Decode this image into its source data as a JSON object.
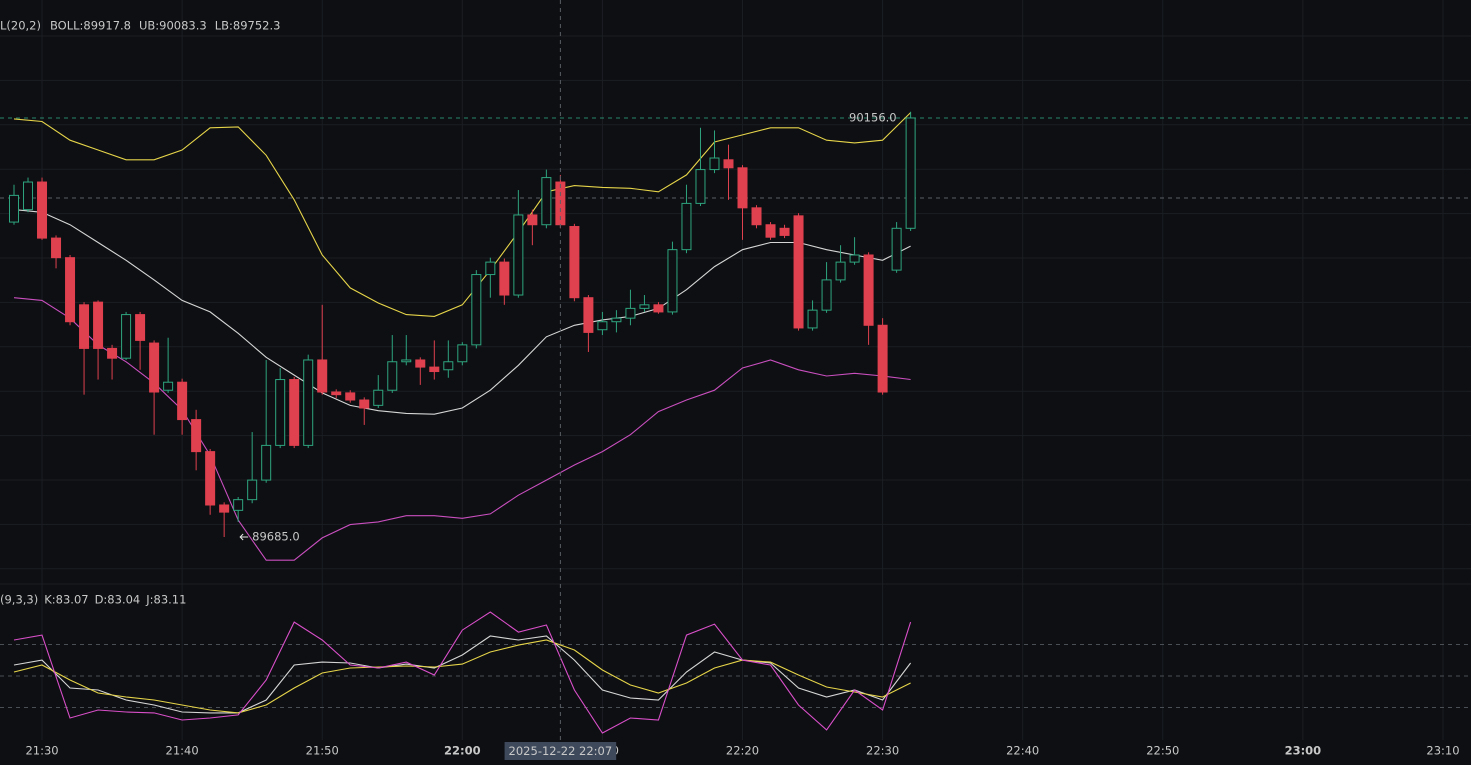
{
  "chart_data": [
    {
      "type": "candlestick",
      "indicator_params": "L(20,2)",
      "up_color": "#2fa57f",
      "down_color": "#e0414f",
      "xlim": [
        "21:27",
        "23:12"
      ],
      "ylim": [
        89636.7,
        90288.6
      ],
      "x": [
        "21:28",
        "21:29",
        "21:30",
        "21:31",
        "21:32",
        "21:33",
        "21:34",
        "21:35",
        "21:36",
        "21:37",
        "21:38",
        "21:39",
        "21:40",
        "21:41",
        "21:42",
        "21:43",
        "21:44",
        "21:45",
        "21:46",
        "21:47",
        "21:48",
        "21:49",
        "21:50",
        "21:51",
        "21:52",
        "21:53",
        "21:54",
        "21:55",
        "21:56",
        "21:57",
        "21:58",
        "21:59",
        "22:00",
        "22:01",
        "22:02",
        "22:03",
        "22:04",
        "22:05",
        "22:06",
        "22:07",
        "22:08",
        "22:09",
        "22:10",
        "22:11",
        "22:12",
        "22:13",
        "22:14",
        "22:15",
        "22:16",
        "22:17",
        "22:18",
        "22:19",
        "22:20",
        "22:21",
        "22:22",
        "22:23",
        "22:24",
        "22:25",
        "22:26",
        "22:27",
        "22:28",
        "22:29",
        "22:30",
        "22:31",
        "22:32"
      ],
      "open": [
        90039,
        90053,
        90084,
        90021,
        89999,
        89946,
        89949,
        89897,
        89886,
        89935,
        89903,
        89850,
        89859,
        89817,
        89781,
        89721,
        89715,
        89727,
        89749,
        89788,
        89862,
        89788,
        89884,
        89848,
        89847,
        89839,
        89833,
        89850,
        89882,
        89884,
        89876,
        89873,
        89882,
        89901,
        89980,
        89994,
        89957,
        90047,
        90036,
        90084,
        90034,
        89954,
        89918,
        89927,
        89931,
        89942,
        89946,
        89938,
        90008,
        90060,
        90098,
        90109,
        90100,
        90055,
        90036,
        90032,
        90046,
        89920,
        89940,
        89974,
        89994,
        90002,
        89923,
        89985,
        90032
      ],
      "high": [
        90081,
        90089,
        90089,
        90024,
        90002,
        89949,
        89951,
        89901,
        89938,
        89938,
        89906,
        89909,
        89863,
        89828,
        89784,
        89724,
        89730,
        89803,
        89884,
        89875,
        89865,
        89890,
        89946,
        89851,
        89850,
        89842,
        89867,
        89912,
        89912,
        89887,
        89906,
        89906,
        89904,
        89985,
        89999,
        89998,
        90075,
        90053,
        90098,
        90092,
        90037,
        89957,
        89938,
        89940,
        89963,
        89957,
        89949,
        90017,
        90081,
        90145,
        90142,
        90126,
        90103,
        90058,
        90039,
        90036,
        90049,
        89951,
        89994,
        90013,
        90022,
        90005,
        89931,
        90039,
        90163
      ],
      "low": [
        90036,
        90050,
        90019,
        89987,
        89923,
        89845,
        89862,
        89862,
        89884,
        89873,
        89800,
        89847,
        89800,
        89760,
        89710,
        89685,
        89702,
        89723,
        89746,
        89785,
        89785,
        89785,
        89845,
        89841,
        89836,
        89811,
        89830,
        89847,
        89878,
        89856,
        89862,
        89864,
        89878,
        89897,
        89954,
        89946,
        89954,
        90013,
        90032,
        90032,
        89950,
        89893,
        89912,
        89915,
        89923,
        89938,
        89936,
        89935,
        90004,
        90057,
        90094,
        90064,
        90019,
        90032,
        90019,
        90021,
        89917,
        89917,
        89937,
        89971,
        89991,
        89901,
        89845,
        89982,
        90029
      ],
      "close": [
        90069,
        90084,
        90021,
        89999,
        89927,
        89897,
        89897,
        89886,
        89935,
        89906,
        89848,
        89859,
        89817,
        89781,
        89721,
        89713,
        89727,
        89749,
        89788,
        89862,
        89788,
        89884,
        89848,
        89845,
        89839,
        89830,
        89850,
        89882,
        89884,
        89876,
        89871,
        89882,
        89901,
        89980,
        89994,
        89957,
        90047,
        90036,
        90089,
        90036,
        89954,
        89915,
        89927,
        89931,
        89942,
        89946,
        89938,
        90008,
        90060,
        90098,
        90111,
        90100,
        90055,
        90036,
        90022,
        90024,
        89920,
        89940,
        89974,
        89994,
        90002,
        89923,
        89848,
        90032,
        90156
      ],
      "overlay": {
        "x": [
          "21:28",
          "21:30",
          "21:32",
          "21:34",
          "21:36",
          "21:38",
          "21:40",
          "21:42",
          "21:44",
          "21:46",
          "21:48",
          "21:50",
          "21:52",
          "21:54",
          "21:56",
          "21:58",
          "22:00",
          "22:02",
          "22:04",
          "22:06",
          "22:08",
          "22:10",
          "22:12",
          "22:14",
          "22:16",
          "22:18",
          "22:20",
          "22:22",
          "22:24",
          "22:26",
          "22:28",
          "22:30",
          "22:32"
        ],
        "series": [
          {
            "label": "BOLL:89917.8",
            "color": "#d6d6d6",
            "values": [
              90053,
              90050,
              90036,
              90016,
              89996,
              89974,
              89951,
              89938,
              89914,
              89887,
              89867,
              89847,
              89833,
              89827,
              89824,
              89823,
              89830,
              89850,
              89878,
              89910,
              89923,
              89929,
              89933,
              89942,
              89963,
              89989,
              90008,
              90016,
              90016,
              90008,
              90002,
              89996,
              90012
            ]
          },
          {
            "label": "UB:90083.3",
            "color": "#e6d44a",
            "values": [
              90155,
              90152,
              90131,
              90120,
              90109,
              90109,
              90120,
              90145,
              90146,
              90114,
              90064,
              90002,
              89965,
              89948,
              89935,
              89933,
              89946,
              89985,
              90028,
              90073,
              90080,
              90078,
              90077,
              90073,
              90092,
              90129,
              90137,
              90145,
              90145,
              90131,
              90128,
              90131,
              90162
            ]
          },
          {
            "label": "LB:89752.3",
            "color": "#c94fbf",
            "values": [
              89954,
              89951,
              89931,
              89901,
              89882,
              89858,
              89828,
              89777,
              89704,
              89659,
              89659,
              89684,
              89699,
              89702,
              89709,
              89709,
              89706,
              89711,
              89732,
              89749,
              89766,
              89781,
              89800,
              89826,
              89839,
              89850,
              89875,
              89884,
              89873,
              89866,
              89869,
              89866,
              89862
            ]
          }
        ]
      },
      "high_label": {
        "x": "22:32",
        "value": 90156,
        "label": "90156.0"
      },
      "low_label": {
        "x": "21:43",
        "value": 89685,
        "label": "89685.0"
      },
      "last_price_line": 90156,
      "crosshair": {
        "x": "22:07",
        "y": 90066,
        "label": "2025-12-22 22:07"
      }
    },
    {
      "type": "line",
      "indicator_params": "(9,3,3)",
      "xlim": [
        "21:27",
        "23:12"
      ],
      "ylim": [
        -11,
        132
      ],
      "levels": [
        20,
        50,
        80
      ],
      "x": [
        "21:28",
        "21:30",
        "21:32",
        "21:34",
        "21:36",
        "21:38",
        "21:40",
        "21:42",
        "21:44",
        "21:46",
        "21:48",
        "21:50",
        "21:52",
        "21:54",
        "21:56",
        "21:58",
        "22:00",
        "22:02",
        "22:04",
        "22:06",
        "22:08",
        "22:10",
        "22:12",
        "22:14",
        "22:16",
        "22:18",
        "22:20",
        "22:22",
        "22:24",
        "22:26",
        "22:28",
        "22:30",
        "22:32"
      ],
      "series": [
        {
          "label": "K:83.07",
          "color": "#d6d6d6",
          "values": [
            60.5,
            65.2,
            38.6,
            36.7,
            27.1,
            22.4,
            15.7,
            14.8,
            14.8,
            27.1,
            60.5,
            63.3,
            62.4,
            57.6,
            61.4,
            57.6,
            70,
            88.1,
            84.3,
            88.1,
            65.2,
            36.7,
            29,
            27.1,
            53.8,
            72.9,
            65.2,
            62.4,
            38.6,
            30,
            36.7,
            27.1,
            62.4
          ]
        },
        {
          "label": "D:83.04",
          "color": "#e6d44a",
          "values": [
            53.8,
            60.5,
            46.2,
            33.8,
            30,
            27.1,
            22.4,
            17.6,
            14.8,
            22.4,
            38.6,
            52.9,
            57.6,
            58.6,
            59.5,
            58.6,
            61.4,
            72.9,
            79.5,
            84.3,
            74.8,
            55.7,
            41.4,
            33.8,
            43.3,
            57.6,
            65.2,
            63.3,
            51,
            39.5,
            34.8,
            30,
            43.3
          ]
        },
        {
          "label": "J:83.11",
          "color": "#d94fc9",
          "values": [
            84.3,
            89,
            10,
            17.6,
            15.7,
            14.8,
            8.1,
            10,
            12.9,
            46.2,
            101.4,
            84.3,
            60.5,
            57.6,
            63.3,
            51,
            93.8,
            111,
            91.9,
            98.6,
            36.7,
            -4.3,
            10,
            8.1,
            89,
            99.5,
            65.2,
            60.5,
            22.4,
            -1.4,
            36.7,
            17.6,
            101.4
          ]
        }
      ],
      "xticks": [
        "21:30",
        "21:40",
        "21:50",
        "22:00",
        "22:10",
        "22:20",
        "22:30",
        "22:40",
        "22:50",
        "23:00",
        "23:10"
      ],
      "xtick_bold": [
        false,
        false,
        false,
        true,
        false,
        false,
        false,
        false,
        false,
        true,
        false
      ]
    }
  ]
}
